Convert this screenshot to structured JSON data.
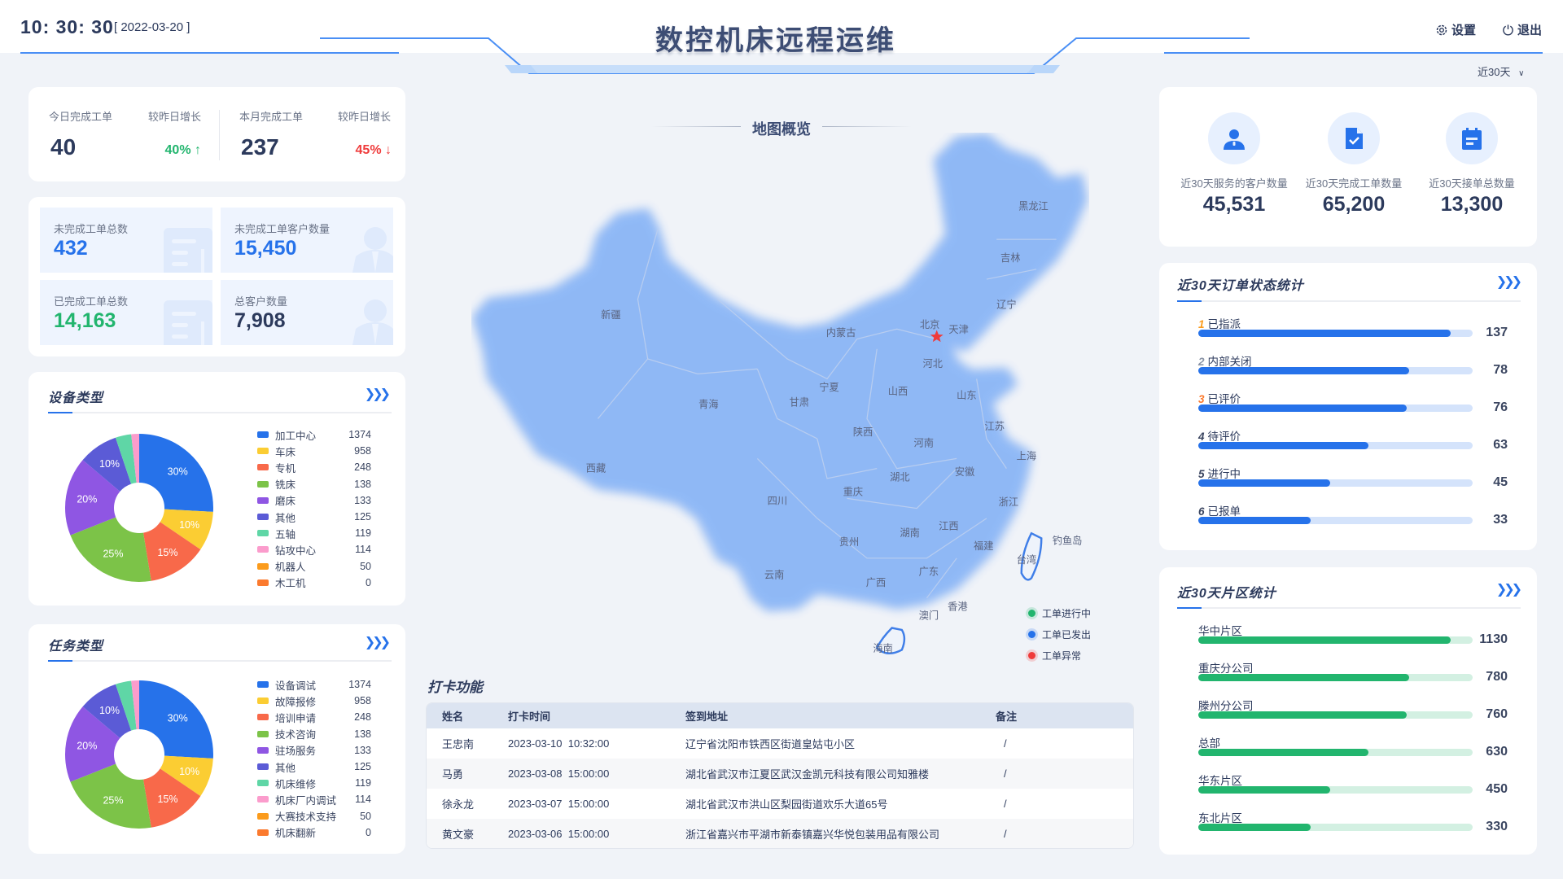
{
  "header": {
    "time": "10: 30: 30",
    "date": "[ 2022-03-20 ]",
    "title": "数控机床远程运维",
    "settings_label": "设置",
    "exit_label": "退出"
  },
  "range_select": {
    "value": "近30天"
  },
  "summary": {
    "today_label": "今日完成工单",
    "today_value": "40",
    "today_growth_label": "较昨日增长",
    "today_growth": "40%",
    "today_trend": "up",
    "month_label": "本月完成工单",
    "month_value": "237",
    "month_growth_label": "较昨日增长",
    "month_growth": "45%",
    "month_trend": "down"
  },
  "tiles": [
    {
      "label": "未完成工单总数",
      "value": "432",
      "color": "#2672ea"
    },
    {
      "label": "未完成工单客户数量",
      "value": "15,450",
      "color": "#2672ea"
    },
    {
      "label": "已完成工单总数",
      "value": "14,163",
      "color": "#22b56e"
    },
    {
      "label": "总客户数量",
      "value": "7,908",
      "color": "#2c3a5c"
    }
  ],
  "stats30": [
    {
      "label": "近30天服务的客户数量",
      "value": "45,531",
      "icon": "user-icon"
    },
    {
      "label": "近30天完成工单数量",
      "value": "65,200",
      "icon": "document-check-icon"
    },
    {
      "label": "近30天接单总数量",
      "value": "13,300",
      "icon": "clipboard-icon"
    }
  ],
  "chart_data": [
    {
      "type": "pie",
      "title": "设备类型",
      "slices": [
        30,
        10,
        15,
        25,
        20,
        10,
        4,
        2,
        0,
        0
      ],
      "slice_labels": [
        "30%",
        "10%",
        "15%",
        "25%",
        "20%",
        "10%",
        "",
        "",
        "",
        ""
      ],
      "legend": [
        {
          "name": "加工中心",
          "value": 1374
        },
        {
          "name": "车床",
          "value": 958
        },
        {
          "name": "专机",
          "value": 248
        },
        {
          "name": "铣床",
          "value": 138
        },
        {
          "name": "磨床",
          "value": 133
        },
        {
          "name": "其他",
          "value": 125
        },
        {
          "name": "五轴",
          "value": 119
        },
        {
          "name": "钻攻中心",
          "value": 114
        },
        {
          "name": "机器人",
          "value": 50
        },
        {
          "name": "木工机",
          "value": 0
        }
      ],
      "colors": [
        "#2672ea",
        "#fbcd33",
        "#f8694a",
        "#7cc348",
        "#8f56e3",
        "#5b5bd6",
        "#5fd6a6",
        "#fb9ccc",
        "#fb9b1c",
        "#fb7a2e"
      ]
    },
    {
      "type": "pie",
      "title": "任务类型",
      "slices": [
        30,
        10,
        15,
        25,
        20,
        10,
        4,
        2,
        0,
        0
      ],
      "slice_labels": [
        "30%",
        "10%",
        "15%",
        "25%",
        "20%",
        "10%",
        "",
        "",
        "",
        ""
      ],
      "legend": [
        {
          "name": "设备调试",
          "value": 1374
        },
        {
          "name": "故障报修",
          "value": 958
        },
        {
          "name": "培训申请",
          "value": 248
        },
        {
          "name": "技术咨询",
          "value": 138
        },
        {
          "name": "驻场服务",
          "value": 133
        },
        {
          "name": "其他",
          "value": 125
        },
        {
          "name": "机床维修",
          "value": 119
        },
        {
          "name": "机床厂内调试",
          "value": 114
        },
        {
          "name": "大赛技术支持",
          "value": 50
        },
        {
          "name": "机床翻新",
          "value": 0
        }
      ],
      "colors": [
        "#2672ea",
        "#fbcd33",
        "#f8694a",
        "#7cc348",
        "#8f56e3",
        "#5b5bd6",
        "#5fd6a6",
        "#fb9ccc",
        "#fb9b1c",
        "#fb7a2e"
      ]
    }
  ],
  "order_status": {
    "title": "近30天订单状态统计",
    "color": "#2672ea",
    "track": "#d4e3fb",
    "rank_colors": [
      "#fb9b1c",
      "#8a94a6",
      "#fb7a2e",
      "#3a4560",
      "#3a4560",
      "#3a4560"
    ],
    "items": [
      {
        "rank": "1",
        "label": "已指派",
        "value": "137",
        "fill_pct": 92
      },
      {
        "rank": "2",
        "label": "内部关闭",
        "value": "78",
        "fill_pct": 77
      },
      {
        "rank": "3",
        "label": "已评价",
        "value": "76",
        "fill_pct": 76
      },
      {
        "rank": "4",
        "label": "待评价",
        "value": "63",
        "fill_pct": 62
      },
      {
        "rank": "5",
        "label": "进行中",
        "value": "45",
        "fill_pct": 48
      },
      {
        "rank": "6",
        "label": "已报单",
        "value": "33",
        "fill_pct": 41
      }
    ]
  },
  "region_stats": {
    "title": "近30天片区统计",
    "color": "#22b56e",
    "track": "#d3f0e2",
    "items": [
      {
        "label": "华中片区",
        "value": "1130",
        "fill_pct": 92
      },
      {
        "label": "重庆分公司",
        "value": "780",
        "fill_pct": 77
      },
      {
        "label": "滕州分公司",
        "value": "760",
        "fill_pct": 76
      },
      {
        "label": "总部",
        "value": "630",
        "fill_pct": 62
      },
      {
        "label": "华东片区",
        "value": "450",
        "fill_pct": 48
      },
      {
        "label": "东北片区",
        "value": "330",
        "fill_pct": 41
      }
    ]
  },
  "map": {
    "title": "地图概览",
    "provinces": [
      "新疆",
      "西藏",
      "青海",
      "甘肃",
      "内蒙古",
      "宁夏",
      "陕西",
      "山西",
      "北京",
      "天津",
      "河北",
      "山东",
      "黑龙江",
      "吉林",
      "辽宁",
      "河南",
      "江苏",
      "上海",
      "安徽",
      "湖北",
      "四川",
      "重庆",
      "浙江",
      "江西",
      "湖南",
      "贵州",
      "福建",
      "台湾",
      "钓鱼岛",
      "云南",
      "广西",
      "广东",
      "澳门",
      "香港",
      "海南"
    ],
    "legend": [
      {
        "label": "工单进行中",
        "color": "#22b56e"
      },
      {
        "label": "工单已发出",
        "color": "#2672ea"
      },
      {
        "label": "工单异常",
        "color": "#ef3b3b"
      }
    ]
  },
  "checkin": {
    "title": "打卡功能",
    "columns": [
      "姓名",
      "打卡时间",
      "签到地址",
      "备注"
    ],
    "rows": [
      [
        "王忠南",
        "2023-03-10  10:32:00",
        "辽宁省沈阳市铁西区街道皇姑屯小区",
        "/"
      ],
      [
        "马勇",
        "2023-03-08  15:00:00",
        "湖北省武汉市江夏区武汉金凯元科技有限公司知雅楼",
        "/"
      ],
      [
        "徐永龙",
        "2023-03-07  15:00:00",
        "湖北省武汉市洪山区梨园街道欢乐大道65号",
        "/"
      ],
      [
        "黄文豪",
        "2023-03-06  15:00:00",
        "浙江省嘉兴市平湖市新泰镇嘉兴华悦包装用品有限公司",
        "/"
      ]
    ]
  }
}
